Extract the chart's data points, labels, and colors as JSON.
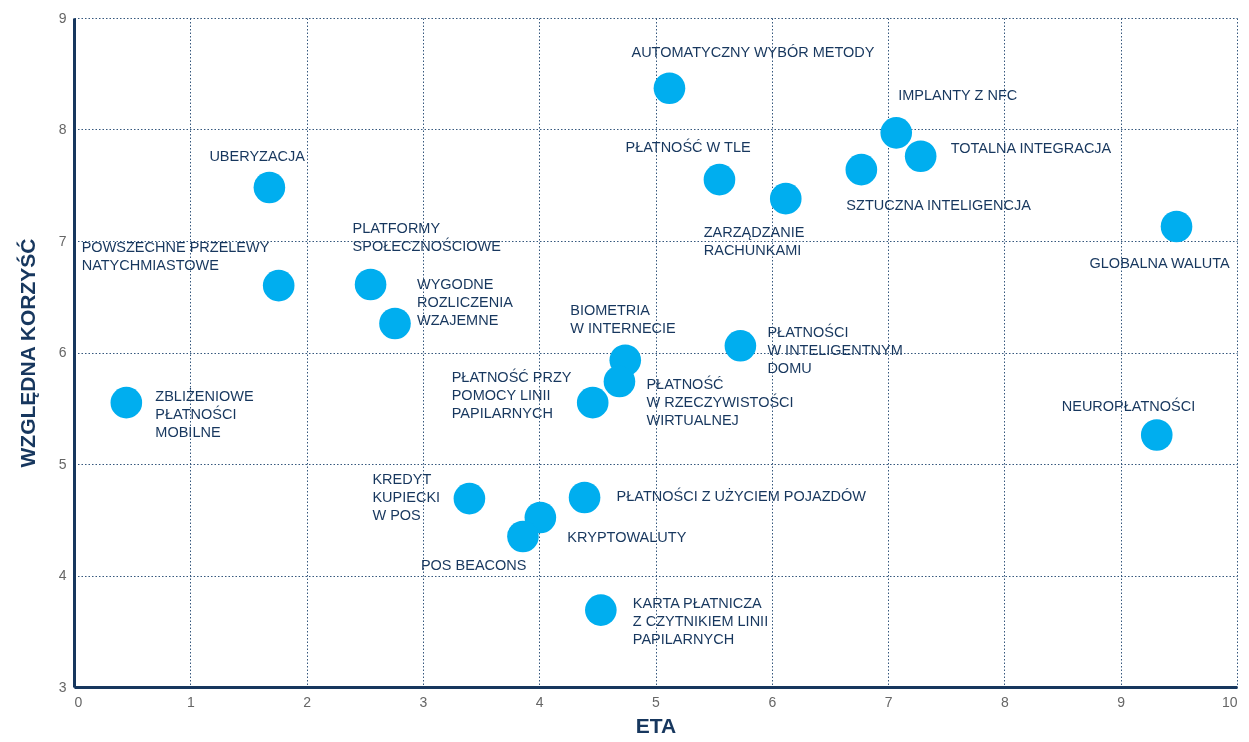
{
  "chart_data": {
    "type": "scatter",
    "xlabel": "ETA",
    "ylabel": "WZGLĘDNA KORZYŚĆ",
    "color": "#00aeef",
    "marker": "circle",
    "grid": true,
    "xlim": [
      0,
      10
    ],
    "ylim": [
      3,
      9
    ],
    "xticks": [
      0,
      1,
      2,
      3,
      4,
      5,
      6,
      7,
      8,
      9,
      10
    ],
    "yticks": [
      3,
      4,
      5,
      6,
      7,
      8,
      9
    ],
    "x": [
      5.12,
      7.07,
      7.28,
      6.77,
      5.55,
      6.12,
      9.48,
      1.68,
      1.76,
      2.55,
      2.76,
      4.74,
      5.73,
      4.69,
      4.46,
      0.45,
      9.31,
      3.4,
      4.39,
      4.01,
      3.86,
      4.53
    ],
    "values": [
      8.37,
      7.97,
      7.76,
      7.64,
      7.55,
      7.38,
      7.13,
      7.48,
      6.6,
      6.61,
      6.26,
      5.93,
      6.06,
      5.74,
      5.55,
      5.55,
      5.26,
      4.69,
      4.7,
      4.52,
      4.35,
      3.69
    ],
    "annotations": [
      {
        "text": "AUTOMATYCZNY WYBÓR METODY",
        "x": 5.12,
        "y": 8.37
      },
      {
        "text": "IMPLANTY Z NFC",
        "x": 7.07,
        "y": 7.97
      },
      {
        "text": "TOTALNA INTEGRACJA",
        "x": 7.28,
        "y": 7.76
      },
      {
        "text": "SZTUCZNA INTELIGENCJA",
        "x": 6.77,
        "y": 7.64
      },
      {
        "text": "PŁATNOŚĆ W TLE",
        "x": 5.55,
        "y": 7.55
      },
      {
        "text": "ZARZĄDZANIE RACHUNKAMI",
        "x": 6.12,
        "y": 7.38
      },
      {
        "text": "GLOBALNA WALUTA",
        "x": 9.48,
        "y": 7.13
      },
      {
        "text": "UBERYZACJA",
        "x": 1.68,
        "y": 7.48
      },
      {
        "text": "POWSZECHNE PRZELEWY NATYCHMIASTOWE",
        "x": 1.76,
        "y": 6.6
      },
      {
        "text": "PLATFORMY SPOŁECZNOŚCIOWE",
        "x": 2.55,
        "y": 6.61
      },
      {
        "text": "WYGODNE ROZLICZENIA WZAJEMNE",
        "x": 2.76,
        "y": 6.26
      },
      {
        "text": "BIOMETRIA W INTERNECIE",
        "x": 4.74,
        "y": 5.93
      },
      {
        "text": "PŁATNOŚCI W INTELIGENTNYM DOMU",
        "x": 5.73,
        "y": 6.06
      },
      {
        "text": "PŁATNOŚĆ W RZECZYWISTOŚCI WIRTUALNEJ",
        "x": 4.69,
        "y": 5.74
      },
      {
        "text": "PŁATNOŚĆ PRZY POMOCY LINII PAPILARNYCH",
        "x": 4.46,
        "y": 5.55
      },
      {
        "text": "ZBLIŻENIOWE PŁATNOŚCI MOBILNE",
        "x": 0.45,
        "y": 5.55
      },
      {
        "text": "NEUROPŁATNOŚCI",
        "x": 9.31,
        "y": 5.26
      },
      {
        "text": "KREDYT KUPIECKI W POS",
        "x": 3.4,
        "y": 4.69
      },
      {
        "text": "PŁATNOŚCI Z UŻYCIEM POJAZDÓW",
        "x": 4.39,
        "y": 4.7
      },
      {
        "text": "KRYPTOWALUTY",
        "x": 4.01,
        "y": 4.52
      },
      {
        "text": "POS BEACONS",
        "x": 3.86,
        "y": 4.35
      },
      {
        "text": "KARTA PŁATNICZA Z CZYTNIKIEM LINII PAPILARNYCH",
        "x": 4.53,
        "y": 3.69
      }
    ]
  }
}
